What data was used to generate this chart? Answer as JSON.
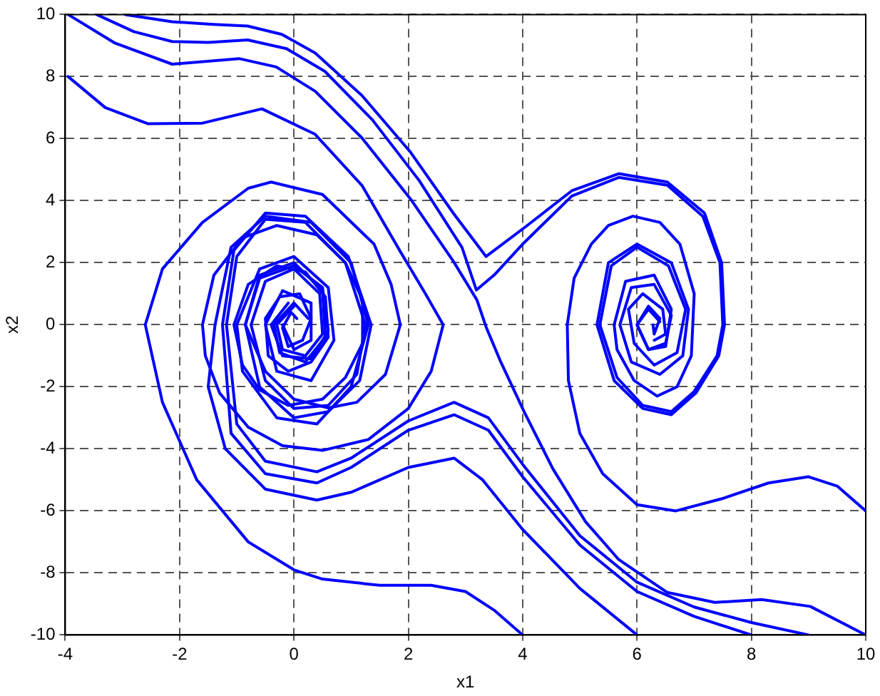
{
  "chart_data": {
    "type": "line",
    "xlabel": "x1",
    "ylabel": "x2",
    "xlim": [
      -4,
      10
    ],
    "ylim": [
      -10,
      10
    ],
    "xticks": [
      -4,
      -2,
      0,
      2,
      4,
      6,
      8,
      10
    ],
    "yticks": [
      -10,
      -8,
      -6,
      -4,
      -2,
      0,
      2,
      4,
      6,
      8,
      10
    ],
    "grid": true,
    "legend": false,
    "marker": "none",
    "series": [
      {
        "color": "#0000ff",
        "x": [
          -3.95,
          -3.3,
          -2.55,
          -1.6,
          -0.56,
          0.37,
          1.19,
          1.86,
          2.3,
          2.61,
          2.4,
          2.0,
          1.3,
          0.5,
          -0.2,
          -0.8,
          -1.3,
          -1.55,
          -1.6,
          -1.4,
          -0.9,
          -0.3,
          0.4,
          0.9,
          1.2,
          1.2,
          0.9,
          0.5,
          -0.1,
          -0.6,
          -0.9,
          -1.05,
          -0.8,
          -0.3,
          0.2,
          0.55,
          0.6,
          0.3,
          -0.1,
          -0.45,
          -0.5,
          -0.25,
          0.1,
          0.3,
          0.15,
          -0.1,
          -0.2,
          -0.05,
          0.05
        ],
        "values": [
          8.0,
          7.0,
          6.48,
          6.5,
          6.96,
          6.14,
          4.49,
          2.36,
          1.0,
          0.0,
          -1.5,
          -2.7,
          -3.7,
          -4.05,
          -3.9,
          -3.3,
          -2.2,
          -1.0,
          0.0,
          1.6,
          2.8,
          3.2,
          2.9,
          2.0,
          0.8,
          -0.6,
          -1.7,
          -2.4,
          -2.6,
          -2.1,
          -1.3,
          0.0,
          1.3,
          1.9,
          1.7,
          0.9,
          -0.4,
          -1.2,
          -1.5,
          -1.0,
          0.2,
          0.9,
          1.0,
          0.2,
          -0.5,
          -0.7,
          -0.1,
          0.4,
          0.2
        ]
      },
      {
        "color": "#0000ff",
        "x": [
          -2.95,
          -2.13,
          -1.4,
          -0.81,
          -0.21,
          0.37,
          1.19,
          2.04,
          2.79,
          3.36,
          4.03,
          4.86,
          5.68,
          6.53,
          7.18,
          7.48,
          7.53,
          7.43,
          7.03,
          6.6,
          6.1,
          5.6,
          5.3,
          5.5,
          6.0,
          6.6,
          6.9,
          6.8,
          6.4,
          5.9,
          5.7,
          5.9,
          6.3,
          6.6,
          6.5,
          6.2,
          6.0,
          6.2,
          6.4
        ],
        "values": [
          10.0,
          9.77,
          9.68,
          9.63,
          9.36,
          8.76,
          7.39,
          5.56,
          3.59,
          2.2,
          3.13,
          4.32,
          4.87,
          4.6,
          3.6,
          2.0,
          0.0,
          -1.0,
          -2.2,
          -2.9,
          -2.7,
          -1.8,
          0.0,
          2.0,
          2.6,
          2.0,
          0.5,
          -1.0,
          -1.6,
          -1.2,
          0.0,
          1.2,
          1.3,
          0.3,
          -0.6,
          -0.8,
          0.0,
          0.5,
          0.1
        ]
      },
      {
        "color": "#0000ff",
        "x": [
          -3.45,
          -2.8,
          -2.13,
          -1.5,
          -0.81,
          -0.13,
          0.54,
          1.37,
          2.19,
          2.94,
          3.19,
          3.5,
          4.0,
          4.86,
          5.68,
          6.53,
          7.15,
          7.45,
          7.5,
          7.4,
          7.0,
          6.6,
          6.1,
          5.65,
          5.35,
          5.55,
          6.0,
          6.55,
          6.85,
          6.7,
          6.3,
          5.95,
          5.85,
          6.1,
          6.45,
          6.5,
          6.3
        ],
        "values": [
          10.0,
          9.45,
          9.13,
          9.1,
          9.18,
          8.9,
          8.17,
          6.61,
          4.65,
          2.49,
          1.12,
          1.6,
          2.6,
          4.15,
          4.75,
          4.5,
          3.5,
          2.0,
          0.0,
          -1.0,
          -2.15,
          -2.8,
          -2.6,
          -1.7,
          0.0,
          1.9,
          2.5,
          1.9,
          0.5,
          -0.9,
          -1.3,
          -0.6,
          0.5,
          1.0,
          0.5,
          -0.3,
          -0.5
        ]
      },
      {
        "color": "#0000ff",
        "x": [
          -3.95,
          -3.13,
          -2.13,
          -0.96,
          -0.31,
          0.37,
          1.19,
          2.04,
          2.79,
          3.2,
          3.36,
          3.61,
          4.03,
          4.53,
          5.1,
          5.68,
          6.53,
          7.36,
          8.18,
          9.03,
          10.0
        ],
        "values": [
          10.0,
          9.08,
          8.4,
          8.58,
          8.31,
          7.53,
          6.02,
          4.05,
          2.04,
          0.8,
          -0.07,
          -1.17,
          -2.82,
          -4.65,
          -6.35,
          -7.57,
          -8.63,
          -8.95,
          -8.86,
          -9.08,
          -10.0
        ]
      },
      {
        "color": "#0000ff",
        "x": [
          10.0,
          9.5,
          9.0,
          8.3,
          7.5,
          6.68,
          6.0,
          5.4,
          5.0,
          4.8,
          4.78,
          4.9,
          5.2,
          5.5,
          5.93,
          6.4,
          6.75,
          7.0,
          6.95,
          6.7,
          6.35,
          5.95,
          5.65,
          5.6,
          5.8,
          6.3,
          6.6,
          6.5,
          6.2,
          6.0,
          6.2,
          6.4,
          6.3,
          6.28
        ],
        "values": [
          -6.0,
          -5.2,
          -4.9,
          -5.1,
          -5.6,
          -6.0,
          -5.8,
          -4.8,
          -3.5,
          -1.8,
          0.0,
          1.5,
          2.6,
          3.2,
          3.5,
          3.3,
          2.6,
          1.0,
          -1.0,
          -2.0,
          -2.3,
          -1.8,
          -0.8,
          0.0,
          1.4,
          1.6,
          0.5,
          -0.7,
          -0.8,
          0.0,
          0.6,
          0.2,
          -0.3,
          0.0
        ]
      },
      {
        "color": "#0000ff",
        "x": [
          9.0,
          8.0,
          7.0,
          6.0,
          5.0,
          4.0,
          3.4,
          2.8,
          2.0,
          1.0,
          0.4,
          -0.5,
          -1.0,
          -1.18,
          -1.0,
          -0.5,
          0.2,
          0.9,
          1.25,
          1.1,
          0.6,
          0.0,
          -0.5,
          -0.75,
          -0.5,
          0.0,
          0.45,
          0.5,
          0.2,
          -0.2,
          -0.3,
          0.0
        ],
        "values": [
          -10.0,
          -9.6,
          -9.1,
          -8.3,
          -6.8,
          -4.5,
          -3.0,
          -2.5,
          -3.1,
          -4.3,
          -4.74,
          -4.4,
          -3.2,
          0.0,
          2.2,
          3.4,
          3.3,
          2.0,
          0.0,
          -1.6,
          -2.6,
          -2.7,
          -1.8,
          0.0,
          1.4,
          1.8,
          1.0,
          -0.3,
          -1.0,
          -0.8,
          0.0,
          0.6
        ]
      },
      {
        "color": "#0000ff",
        "x": [
          8.0,
          7.0,
          6.0,
          5.0,
          4.0,
          3.4,
          2.8,
          2.0,
          1.0,
          0.4,
          -0.5,
          -1.1,
          -1.25,
          -1.05,
          -0.5,
          0.2,
          0.95,
          1.35,
          1.15,
          0.6,
          0.0,
          -0.6,
          -0.85,
          -0.6,
          0.0,
          0.5,
          0.55,
          0.2,
          -0.25,
          -0.35,
          0.0,
          0.25
        ],
        "values": [
          -10.0,
          -9.4,
          -8.6,
          -7.1,
          -4.9,
          -3.4,
          -2.9,
          -3.4,
          -4.6,
          -5.1,
          -4.8,
          -3.5,
          0.0,
          2.4,
          3.6,
          3.5,
          2.2,
          0.0,
          -1.8,
          -2.8,
          -3.0,
          -2.0,
          0.0,
          1.6,
          2.0,
          1.1,
          -0.4,
          -1.2,
          -0.9,
          0.0,
          0.7,
          0.2
        ]
      },
      {
        "color": "#0000ff",
        "x": [
          6.0,
          5.0,
          4.0,
          3.3,
          2.8,
          2.0,
          1.0,
          0.4,
          -0.5,
          -1.2,
          -1.5,
          -1.38,
          -1.1,
          -0.5,
          0.3,
          1.0,
          1.3,
          1.0,
          0.4,
          -0.3,
          -0.9,
          -1.0,
          -0.6,
          0.0,
          0.6,
          0.7,
          0.3,
          -0.3,
          -0.5,
          -0.2,
          0.3,
          0.3,
          0.0,
          -0.2
        ],
        "values": [
          -10.0,
          -8.5,
          -6.6,
          -5.0,
          -4.3,
          -4.6,
          -5.4,
          -5.65,
          -5.3,
          -4.0,
          -2.0,
          0.0,
          2.5,
          3.5,
          3.3,
          2.0,
          0.0,
          -2.0,
          -3.2,
          -3.0,
          -1.5,
          0.0,
          1.8,
          2.2,
          1.2,
          -0.5,
          -1.8,
          -1.5,
          0.0,
          1.1,
          0.7,
          -0.5,
          -0.8,
          0.0
        ]
      },
      {
        "color": "#0000ff",
        "x": [
          4.0,
          3.5,
          3.0,
          2.4,
          1.5,
          0.5,
          0.0,
          -0.8,
          -1.7,
          -2.3,
          -2.6,
          -2.3,
          -1.6,
          -0.8,
          -0.4,
          0.5,
          1.4,
          1.7,
          1.86,
          1.6,
          1.1,
          0.6,
          0.0,
          -0.5,
          -0.85,
          -0.6,
          0.0,
          0.5,
          0.6,
          0.3,
          -0.2,
          -0.4,
          -0.1
        ],
        "values": [
          -10.0,
          -9.2,
          -8.6,
          -8.4,
          -8.4,
          -8.2,
          -7.9,
          -7.0,
          -5.0,
          -2.5,
          0.0,
          1.8,
          3.3,
          4.4,
          4.6,
          4.2,
          2.6,
          1.3,
          0.0,
          -1.6,
          -2.5,
          -2.68,
          -2.4,
          -1.5,
          0.0,
          1.5,
          1.9,
          1.2,
          -0.2,
          -1.1,
          -1.0,
          0.0,
          0.7
        ]
      }
    ]
  }
}
